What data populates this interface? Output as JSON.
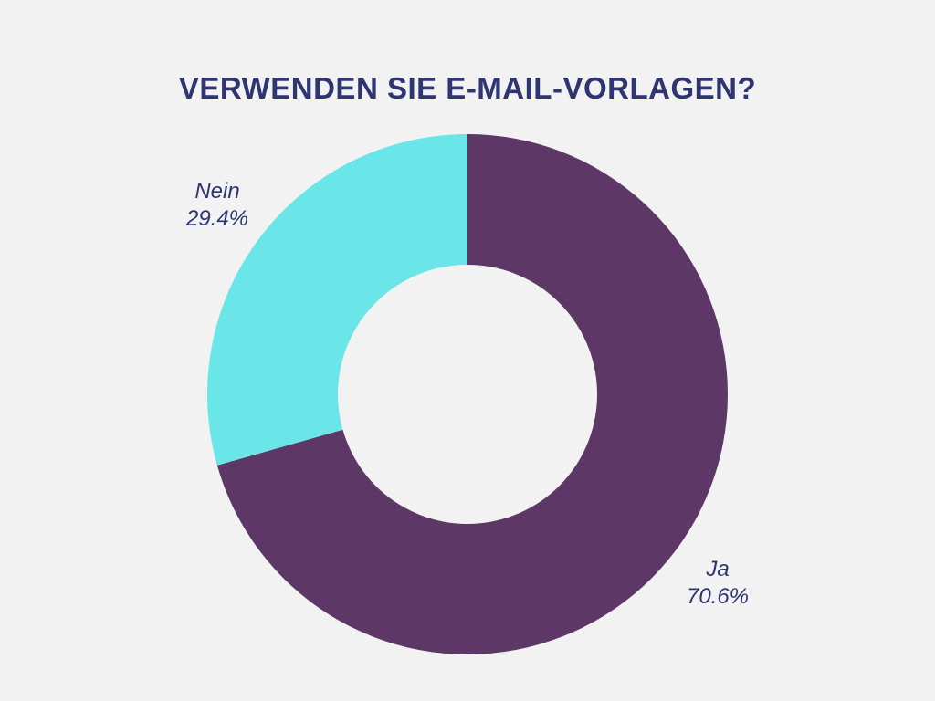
{
  "chart_data": {
    "type": "pie",
    "donut": true,
    "title": "VERWENDEN SIE E-MAIL-VORLAGEN?",
    "slices": [
      {
        "label": "Ja",
        "value": 70.6,
        "value_label": "70.6%",
        "color": "#5d3766"
      },
      {
        "label": "Nein",
        "value": 29.4,
        "value_label": "29.4%",
        "color": "#6ae6e8"
      }
    ]
  }
}
